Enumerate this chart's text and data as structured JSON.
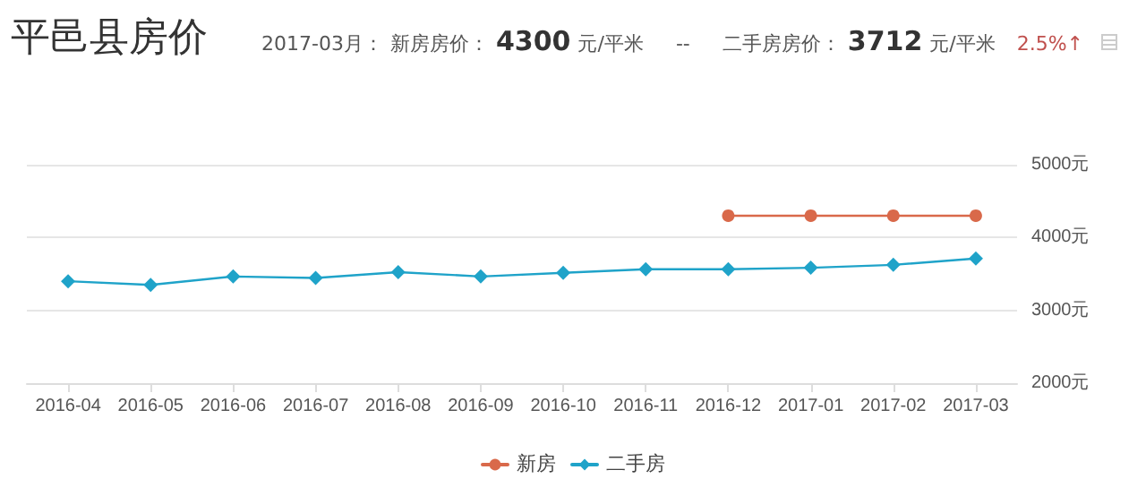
{
  "chart_data": {
    "type": "line",
    "title": "平邑县房价",
    "annotations": [
      "2017-03月：",
      "新房房价：",
      "4300",
      "元/平米",
      "--",
      "二手房房价：",
      "3712",
      "元/平米",
      "2.5%↑"
    ],
    "categories": [
      "2016-04",
      "2016-05",
      "2016-06",
      "2016-07",
      "2016-08",
      "2016-09",
      "2016-10",
      "2016-11",
      "2016-12",
      "2017-01",
      "2017-02",
      "2017-03"
    ],
    "series": [
      {
        "name": "新房",
        "color": "#d9694a",
        "marker": "circle",
        "values": [
          null,
          null,
          null,
          null,
          null,
          null,
          null,
          null,
          4300,
          4300,
          4300,
          4300
        ]
      },
      {
        "name": "二手房",
        "color": "#1fa3c9",
        "marker": "diamond",
        "values": [
          3400,
          3350,
          3465,
          3445,
          3525,
          3465,
          3515,
          3565,
          3565,
          3585,
          3625,
          3712
        ]
      }
    ],
    "ylim": [
      2000,
      5000
    ],
    "yticks": [
      {
        "value": 2000,
        "label": "2000元"
      },
      {
        "value": 3000,
        "label": "3000元"
      },
      {
        "value": 4000,
        "label": "4000元"
      },
      {
        "value": 5000,
        "label": "5000元"
      }
    ],
    "grid": "y",
    "legend": "bottom",
    "line_style": "solid"
  }
}
